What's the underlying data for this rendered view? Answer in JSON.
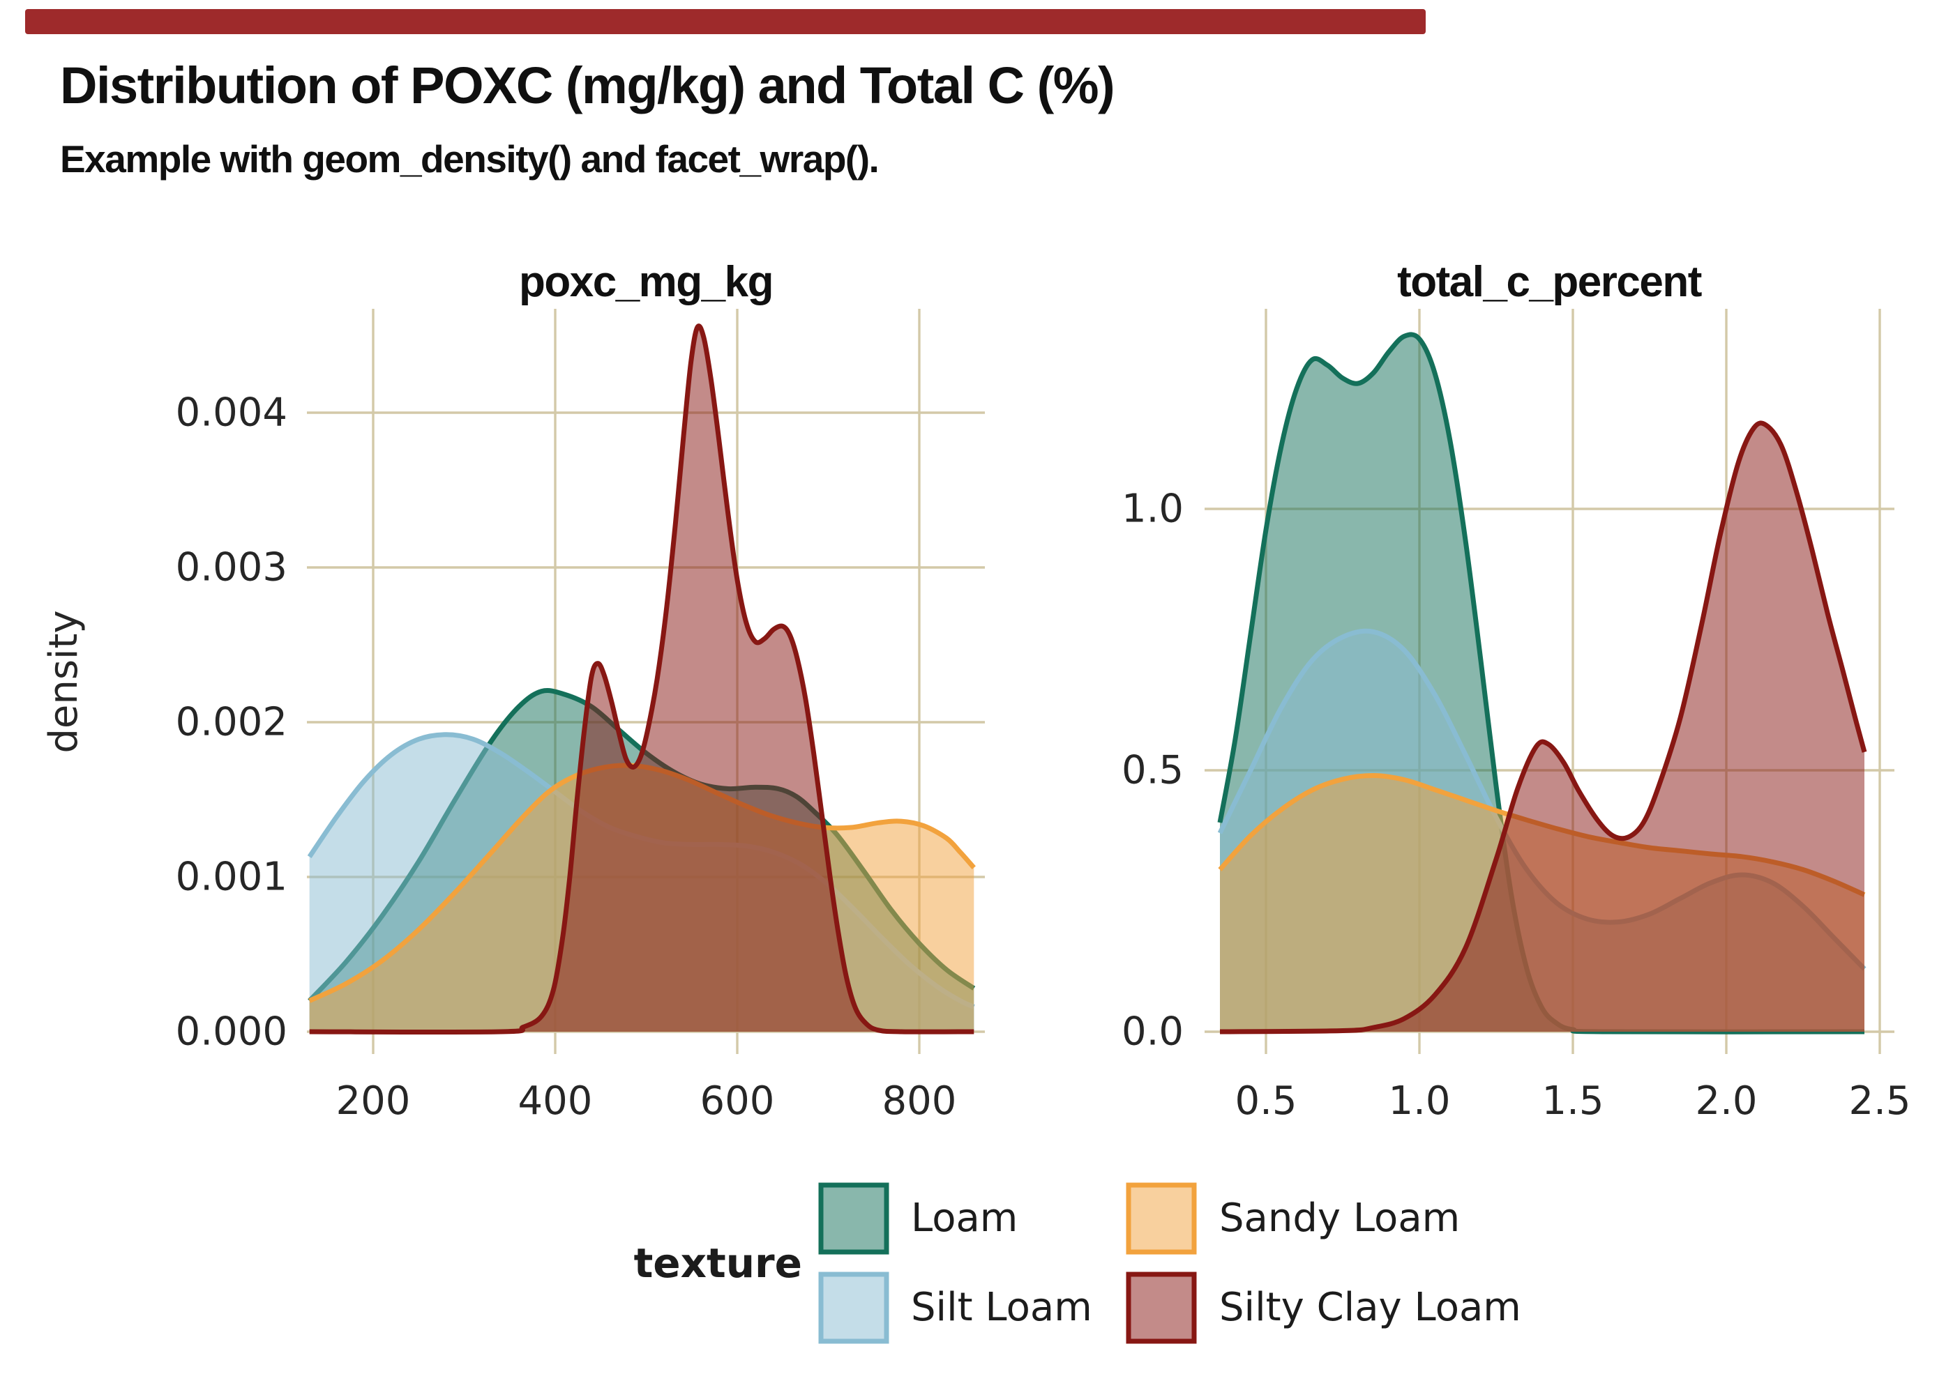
{
  "header": {
    "title": "Distribution of POXC (mg/kg) and Total C (%)",
    "subtitle": "Example with geom_density() and facet_wrap()."
  },
  "top_bar": {
    "color": "#9e2a2b"
  },
  "style": {
    "background": "#ffffff",
    "gridline_color": "#d3c9a8",
    "text_color": "#262626",
    "title_color": "#101010",
    "fill_alpha": 0.5,
    "stroke_width": 7
  },
  "axis": {
    "y_title": "density"
  },
  "legend": {
    "title": "texture",
    "items": [
      {
        "label": "Loam",
        "color": "#14705a"
      },
      {
        "label": "Silt Loam",
        "color": "#89bcd2"
      },
      {
        "label": "Sandy Loam",
        "color": "#f2a23d"
      },
      {
        "label": "Silty Clay Loam",
        "color": "#871713"
      }
    ]
  },
  "chart_data": [
    {
      "type": "area",
      "facet": "poxc_mg_kg",
      "ylabel": "density",
      "xlim": [
        130,
        860
      ],
      "ylim": [
        0,
        0.00477
      ],
      "grid": true,
      "x_ticks": [
        {
          "v": 200,
          "label": "200"
        },
        {
          "v": 400,
          "label": "400"
        },
        {
          "v": 600,
          "label": "600"
        },
        {
          "v": 800,
          "label": "800"
        }
      ],
      "y_ticks": [
        {
          "v": 0,
          "label": "0.000"
        },
        {
          "v": 0.001,
          "label": "0.001"
        },
        {
          "v": 0.002,
          "label": "0.002"
        },
        {
          "v": 0.003,
          "label": "0.003"
        },
        {
          "v": 0.004,
          "label": "0.004"
        }
      ],
      "series": [
        {
          "name": "Loam",
          "color": "#14705a",
          "points": [
            [
              130,
              0.0002
            ],
            [
              170,
              0.00045
            ],
            [
              210,
              0.00075
            ],
            [
              250,
              0.0011
            ],
            [
              290,
              0.0015
            ],
            [
              330,
              0.00188
            ],
            [
              360,
              0.0021
            ],
            [
              385,
              0.0022
            ],
            [
              410,
              0.00218
            ],
            [
              440,
              0.0021
            ],
            [
              470,
              0.00195
            ],
            [
              500,
              0.0018
            ],
            [
              530,
              0.00168
            ],
            [
              560,
              0.0016
            ],
            [
              590,
              0.00157
            ],
            [
              620,
              0.00158
            ],
            [
              645,
              0.00157
            ],
            [
              665,
              0.00152
            ],
            [
              685,
              0.00142
            ],
            [
              710,
              0.00127
            ],
            [
              740,
              0.00103
            ],
            [
              770,
              0.00078
            ],
            [
              800,
              0.00057
            ],
            [
              830,
              0.0004
            ],
            [
              860,
              0.00028
            ]
          ]
        },
        {
          "name": "Silt Loam",
          "color": "#89bcd2",
          "points": [
            [
              130,
              0.00113
            ],
            [
              160,
              0.00139
            ],
            [
              190,
              0.00162
            ],
            [
              220,
              0.00179
            ],
            [
              250,
              0.00189
            ],
            [
              280,
              0.00192
            ],
            [
              310,
              0.00189
            ],
            [
              340,
              0.0018
            ],
            [
              370,
              0.00168
            ],
            [
              400,
              0.00155
            ],
            [
              430,
              0.00142
            ],
            [
              460,
              0.00132
            ],
            [
              490,
              0.00126
            ],
            [
              520,
              0.00122
            ],
            [
              550,
              0.00121
            ],
            [
              580,
              0.00121
            ],
            [
              610,
              0.0012
            ],
            [
              640,
              0.00116
            ],
            [
              670,
              0.00108
            ],
            [
              700,
              0.00095
            ],
            [
              730,
              0.00078
            ],
            [
              760,
              0.0006
            ],
            [
              790,
              0.00043
            ],
            [
              820,
              0.00029
            ],
            [
              845,
              0.0002
            ],
            [
              860,
              0.00016
            ]
          ]
        },
        {
          "name": "Sandy Loam",
          "color": "#f2a23d",
          "points": [
            [
              130,
              0.0002
            ],
            [
              170,
              0.00031
            ],
            [
              210,
              0.00046
            ],
            [
              250,
              0.00066
            ],
            [
              290,
              0.0009
            ],
            [
              330,
              0.00116
            ],
            [
              365,
              0.00139
            ],
            [
              395,
              0.00156
            ],
            [
              425,
              0.00166
            ],
            [
              455,
              0.00171
            ],
            [
              485,
              0.00172
            ],
            [
              515,
              0.00169
            ],
            [
              545,
              0.00163
            ],
            [
              575,
              0.00155
            ],
            [
              605,
              0.00147
            ],
            [
              635,
              0.0014
            ],
            [
              665,
              0.00135
            ],
            [
              695,
              0.00132
            ],
            [
              725,
              0.00132
            ],
            [
              755,
              0.00135
            ],
            [
              780,
              0.00136
            ],
            [
              805,
              0.00133
            ],
            [
              830,
              0.00125
            ],
            [
              845,
              0.00116
            ],
            [
              860,
              0.00106
            ]
          ]
        },
        {
          "name": "Silty Clay Loam",
          "color": "#871713",
          "points": [
            [
              130,
              0
            ],
            [
              340,
              0
            ],
            [
              365,
              3e-05
            ],
            [
              385,
              0.0001
            ],
            [
              398,
              0.00027
            ],
            [
              408,
              0.0006
            ],
            [
              416,
              0.001
            ],
            [
              424,
              0.0015
            ],
            [
              432,
              0.00195
            ],
            [
              440,
              0.0023
            ],
            [
              447,
              0.00238
            ],
            [
              454,
              0.0023
            ],
            [
              462,
              0.00213
            ],
            [
              470,
              0.00193
            ],
            [
              478,
              0.00176
            ],
            [
              486,
              0.00171
            ],
            [
              494,
              0.00178
            ],
            [
              502,
              0.00196
            ],
            [
              512,
              0.00228
            ],
            [
              522,
              0.00272
            ],
            [
              532,
              0.00328
            ],
            [
              541,
              0.00385
            ],
            [
              549,
              0.00432
            ],
            [
              556,
              0.00455
            ],
            [
              563,
              0.00449
            ],
            [
              571,
              0.00422
            ],
            [
              580,
              0.00382
            ],
            [
              590,
              0.00334
            ],
            [
              600,
              0.00292
            ],
            [
              610,
              0.00264
            ],
            [
              620,
              0.00252
            ],
            [
              630,
              0.00254
            ],
            [
              640,
              0.0026
            ],
            [
              650,
              0.00262
            ],
            [
              658,
              0.00256
            ],
            [
              666,
              0.00241
            ],
            [
              675,
              0.00215
            ],
            [
              684,
              0.0018
            ],
            [
              693,
              0.0014
            ],
            [
              702,
              0.001
            ],
            [
              711,
              0.00064
            ],
            [
              720,
              0.00035
            ],
            [
              730,
              0.00015
            ],
            [
              742,
              5e-05
            ],
            [
              755,
              1e-05
            ],
            [
              780,
              0
            ],
            [
              860,
              0
            ]
          ]
        }
      ]
    },
    {
      "type": "area",
      "facet": "total_c_percent",
      "ylabel": "density",
      "xlim": [
        0.35,
        2.45
      ],
      "ylim": [
        0,
        1.38
      ],
      "grid": true,
      "x_ticks": [
        {
          "v": 0.5,
          "label": "0.5"
        },
        {
          "v": 1.0,
          "label": "1.0"
        },
        {
          "v": 1.5,
          "label": "1.5"
        },
        {
          "v": 2.0,
          "label": "2.0"
        },
        {
          "v": 2.5,
          "label": "2.5"
        }
      ],
      "y_ticks": [
        {
          "v": 0,
          "label": "0.0"
        },
        {
          "v": 0.5,
          "label": "0.5"
        },
        {
          "v": 1.0,
          "label": "1.0"
        }
      ],
      "series": [
        {
          "name": "Loam",
          "color": "#14705a",
          "points": [
            [
              0.35,
              0.4
            ],
            [
              0.4,
              0.56
            ],
            [
              0.45,
              0.76
            ],
            [
              0.5,
              0.96
            ],
            [
              0.55,
              1.12
            ],
            [
              0.6,
              1.23
            ],
            [
              0.65,
              1.285
            ],
            [
              0.7,
              1.275
            ],
            [
              0.75,
              1.25
            ],
            [
              0.8,
              1.24
            ],
            [
              0.85,
              1.26
            ],
            [
              0.9,
              1.3
            ],
            [
              0.95,
              1.33
            ],
            [
              1.0,
              1.325
            ],
            [
              1.05,
              1.26
            ],
            [
              1.1,
              1.13
            ],
            [
              1.15,
              0.94
            ],
            [
              1.2,
              0.71
            ],
            [
              1.25,
              0.47
            ],
            [
              1.3,
              0.26
            ],
            [
              1.35,
              0.12
            ],
            [
              1.4,
              0.045
            ],
            [
              1.45,
              0.015
            ],
            [
              1.5,
              0.004
            ],
            [
              1.6,
              0
            ],
            [
              2.45,
              0
            ]
          ]
        },
        {
          "name": "Silt Loam",
          "color": "#89bcd2",
          "points": [
            [
              0.35,
              0.38
            ],
            [
              0.45,
              0.5
            ],
            [
              0.55,
              0.62
            ],
            [
              0.65,
              0.71
            ],
            [
              0.75,
              0.755
            ],
            [
              0.85,
              0.765
            ],
            [
              0.95,
              0.73
            ],
            [
              1.05,
              0.645
            ],
            [
              1.15,
              0.53
            ],
            [
              1.25,
              0.41
            ],
            [
              1.35,
              0.31
            ],
            [
              1.45,
              0.245
            ],
            [
              1.55,
              0.215
            ],
            [
              1.65,
              0.21
            ],
            [
              1.75,
              0.225
            ],
            [
              1.85,
              0.255
            ],
            [
              1.95,
              0.285
            ],
            [
              2.05,
              0.3
            ],
            [
              2.15,
              0.285
            ],
            [
              2.25,
              0.24
            ],
            [
              2.35,
              0.18
            ],
            [
              2.45,
              0.12
            ]
          ]
        },
        {
          "name": "Sandy Loam",
          "color": "#f2a23d",
          "points": [
            [
              0.35,
              0.31
            ],
            [
              0.45,
              0.375
            ],
            [
              0.55,
              0.425
            ],
            [
              0.65,
              0.462
            ],
            [
              0.75,
              0.483
            ],
            [
              0.85,
              0.49
            ],
            [
              0.95,
              0.482
            ],
            [
              1.05,
              0.463
            ],
            [
              1.15,
              0.443
            ],
            [
              1.25,
              0.423
            ],
            [
              1.35,
              0.405
            ],
            [
              1.45,
              0.388
            ],
            [
              1.55,
              0.373
            ],
            [
              1.65,
              0.362
            ],
            [
              1.75,
              0.352
            ],
            [
              1.85,
              0.346
            ],
            [
              1.95,
              0.34
            ],
            [
              2.05,
              0.335
            ],
            [
              2.15,
              0.325
            ],
            [
              2.25,
              0.31
            ],
            [
              2.35,
              0.288
            ],
            [
              2.45,
              0.262
            ]
          ]
        },
        {
          "name": "Silty Clay Loam",
          "color": "#871713",
          "points": [
            [
              0.35,
              0
            ],
            [
              0.75,
              0.002
            ],
            [
              0.85,
              0.008
            ],
            [
              0.95,
              0.025
            ],
            [
              1.05,
              0.07
            ],
            [
              1.15,
              0.16
            ],
            [
              1.25,
              0.33
            ],
            [
              1.32,
              0.465
            ],
            [
              1.38,
              0.545
            ],
            [
              1.42,
              0.55
            ],
            [
              1.47,
              0.515
            ],
            [
              1.52,
              0.46
            ],
            [
              1.58,
              0.405
            ],
            [
              1.63,
              0.375
            ],
            [
              1.68,
              0.372
            ],
            [
              1.73,
              0.4
            ],
            [
              1.78,
              0.47
            ],
            [
              1.85,
              0.6
            ],
            [
              1.92,
              0.78
            ],
            [
              1.98,
              0.95
            ],
            [
              2.04,
              1.09
            ],
            [
              2.09,
              1.155
            ],
            [
              2.13,
              1.16
            ],
            [
              2.18,
              1.12
            ],
            [
              2.23,
              1.03
            ],
            [
              2.28,
              0.92
            ],
            [
              2.33,
              0.8
            ],
            [
              2.38,
              0.69
            ],
            [
              2.42,
              0.6
            ],
            [
              2.45,
              0.535
            ]
          ]
        }
      ]
    }
  ]
}
